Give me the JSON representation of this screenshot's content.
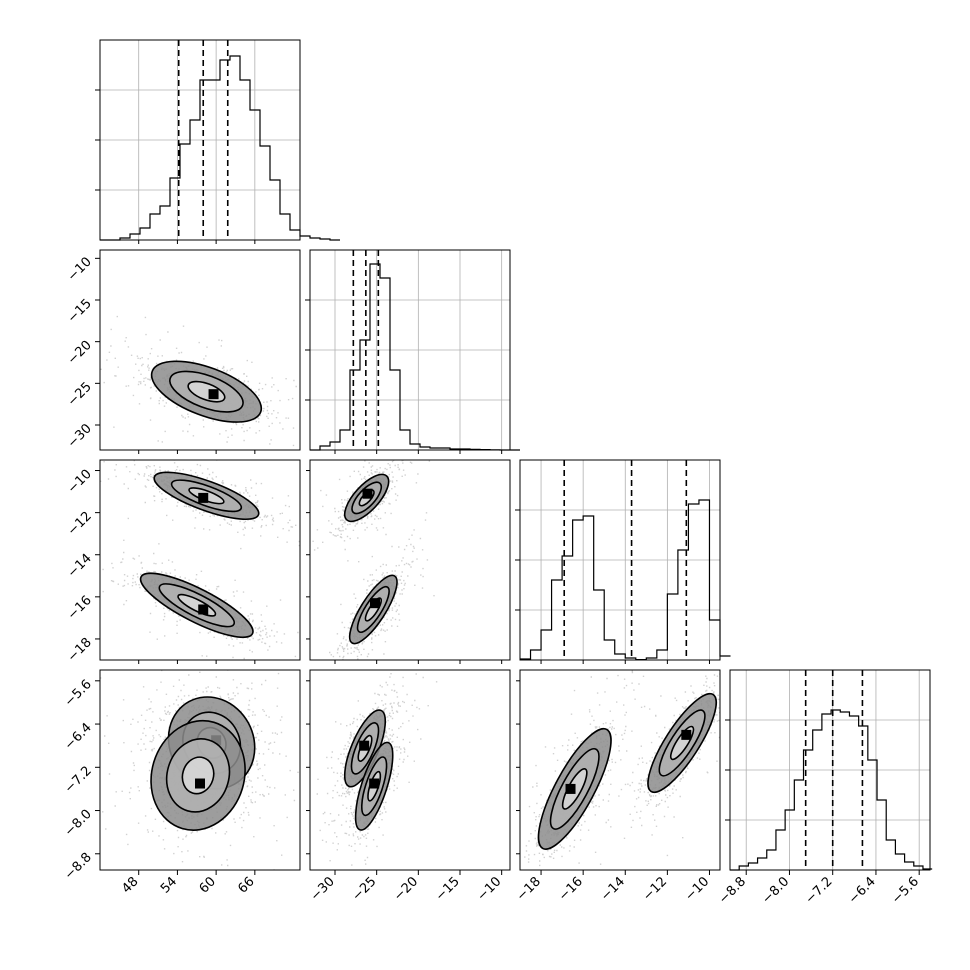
{
  "chart_data": {
    "type": "corner",
    "parameters": [
      {
        "ticks": [
          48,
          54,
          60,
          66
        ],
        "tick_labels": [
          "48",
          "54",
          "60",
          "66"
        ],
        "range": [
          42,
          73
        ],
        "quantiles": [
          54.2,
          58.0,
          61.8
        ],
        "hist": {
          "edges_start": 42,
          "bin_width": 1.55,
          "counts": [
            0,
            0,
            0.01,
            0.03,
            0.06,
            0.13,
            0.17,
            0.31,
            0.48,
            0.6,
            0.8,
            0.8,
            0.9,
            0.92,
            0.8,
            0.65,
            0.47,
            0.3,
            0.13,
            0.05,
            0.02,
            0.01,
            0.005,
            0
          ]
        }
      },
      {
        "ticks": [
          -30,
          -25,
          -20,
          -15,
          -10
        ],
        "tick_labels": [
          "−30",
          "−25",
          "−20",
          "−15",
          "−10"
        ],
        "range": [
          -33,
          -9
        ],
        "quantiles": [
          -27.8,
          -26.3,
          -24.8
        ],
        "hist": {
          "edges_start": -33,
          "bin_width": 1.2,
          "counts": [
            0,
            0.02,
            0.04,
            0.1,
            0.4,
            0.55,
            0.93,
            0.86,
            0.4,
            0.1,
            0.03,
            0.015,
            0.01,
            0.01,
            0.005,
            0.005,
            0.003,
            0.002,
            0.001,
            0,
            0
          ]
        }
      },
      {
        "ticks": [
          -18,
          -16,
          -14,
          -12,
          -10
        ],
        "tick_labels": [
          "−18",
          "−16",
          "−14",
          "−12",
          "−10"
        ],
        "range": [
          -19,
          -9.5
        ],
        "quantiles": [
          -16.9,
          -13.7,
          -11.1
        ],
        "hist": {
          "edges_start": -19,
          "bin_width": 0.5,
          "counts": [
            0.005,
            0.05,
            0.15,
            0.4,
            0.52,
            0.7,
            0.72,
            0.35,
            0.1,
            0.03,
            0.01,
            0.002,
            0.01,
            0.05,
            0.33,
            0.55,
            0.78,
            0.8,
            0.2,
            0.02
          ]
        }
      },
      {
        "ticks": [
          -8.8,
          -8.0,
          -7.2,
          -6.4,
          -5.6
        ],
        "tick_labels": [
          "−8.8",
          "−8.0",
          "−7.2",
          "−6.4",
          "−5.6"
        ],
        "range": [
          -9.1,
          -5.4
        ],
        "quantiles": [
          -7.7,
          -7.2,
          -6.65
        ],
        "hist": {
          "edges_start": -9.1,
          "bin_width": 0.17,
          "counts": [
            0,
            0.02,
            0.035,
            0.06,
            0.1,
            0.2,
            0.3,
            0.45,
            0.6,
            0.7,
            0.78,
            0.8,
            0.79,
            0.77,
            0.72,
            0.55,
            0.35,
            0.15,
            0.08,
            0.04,
            0.02,
            0.005
          ]
        }
      }
    ],
    "histogram_grid": {
      "y_fractions": [
        0.25,
        0.5,
        0.75
      ]
    },
    "joint_panels": [
      {
        "x": 0,
        "y": 1,
        "blobs": [
          {
            "center": [
              58.5,
              -26.0
            ],
            "sigma": [
              4.2,
              1.8
            ],
            "rho": -0.55,
            "peak": [
              59.6,
              -26.3
            ]
          }
        ]
      },
      {
        "x": 0,
        "y": 2,
        "blobs": [
          {
            "center": [
              58.5,
              -11.2
            ],
            "sigma": [
              4.0,
              0.55
            ],
            "rho": -0.75,
            "peak": [
              58.0,
              -11.3
            ]
          },
          {
            "center": [
              57.0,
              -16.4
            ],
            "sigma": [
              4.3,
              0.75
            ],
            "rho": -0.82,
            "peak": [
              58.0,
              -16.6
            ]
          }
        ]
      },
      {
        "x": 1,
        "y": 2,
        "blobs": [
          {
            "center": [
              -26.2,
              -11.3
            ],
            "sigma": [
              1.3,
              0.55
            ],
            "rho": 0.7,
            "peak": [
              -26.1,
              -11.1
            ]
          },
          {
            "center": [
              -25.4,
              -16.6
            ],
            "sigma": [
              1.4,
              0.8
            ],
            "rho": 0.8,
            "peak": [
              -25.2,
              -16.3
            ]
          }
        ]
      },
      {
        "x": 0,
        "y": 3,
        "blobs": [
          {
            "center": [
              59.3,
              -6.75
            ],
            "sigma": [
              3.3,
              0.42
            ],
            "rho": -0.1,
            "peak": [
              60.0,
              -6.7
            ]
          },
          {
            "center": [
              57.2,
              -7.35
            ],
            "sigma": [
              3.6,
              0.5
            ],
            "rho": 0.1,
            "peak": [
              57.5,
              -7.5
            ]
          }
        ]
      },
      {
        "x": 1,
        "y": 3,
        "blobs": [
          {
            "center": [
              -26.4,
              -6.85
            ],
            "sigma": [
              1.2,
              0.35
            ],
            "rho": 0.7,
            "peak": [
              -26.5,
              -6.8
            ]
          },
          {
            "center": [
              -25.3,
              -7.55
            ],
            "sigma": [
              1.1,
              0.4
            ],
            "rho": 0.7,
            "peak": [
              -25.3,
              -7.5
            ]
          }
        ]
      },
      {
        "x": 2,
        "y": 3,
        "blobs": [
          {
            "center": [
              -16.4,
              -7.6
            ],
            "sigma": [
              0.85,
              0.55
            ],
            "rho": 0.8,
            "peak": [
              -16.6,
              -7.6
            ]
          },
          {
            "center": [
              -11.3,
              -6.75
            ],
            "sigma": [
              0.8,
              0.45
            ],
            "rho": 0.82,
            "peak": [
              -11.1,
              -6.6
            ]
          }
        ]
      }
    ],
    "contour_levels": [
      0.5,
      1.0,
      1.5
    ],
    "colors": {
      "frame": "#000000",
      "grid": "#b0b0b0",
      "points": "#9a9a9a",
      "shade_dark": "#000000",
      "shade_light": "#ffffff"
    }
  }
}
